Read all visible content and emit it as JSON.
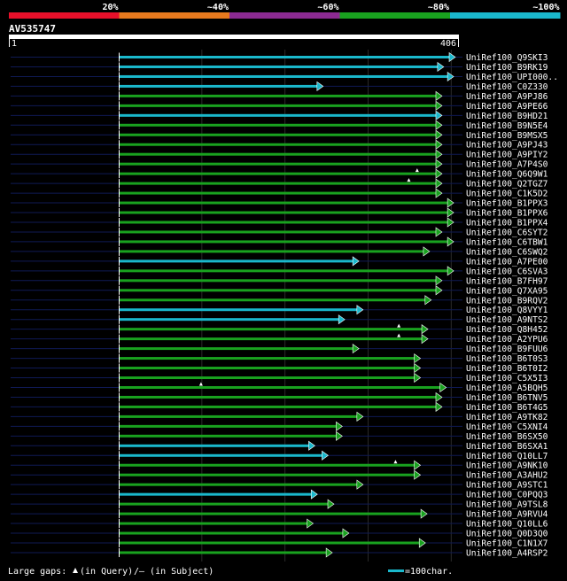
{
  "chart_data": {
    "type": "alignment",
    "query_id": "AV535747",
    "query_length": 406,
    "axis": {
      "start_label": "1",
      "end_label": "406"
    },
    "identity_legend": [
      {
        "label": "20%",
        "color": "#e8102a"
      },
      {
        "label": "~40%",
        "color": "#e87a1e"
      },
      {
        "label": "~60%",
        "color": "#8c2a92"
      },
      {
        "label": "~80%",
        "color": "#19a21f"
      },
      {
        "label": "~100%",
        "color": "#1ab8cc"
      }
    ],
    "footer": {
      "gaps_prefix": "Large gaps: ",
      "gaps_query": "(in Query)",
      "gaps_subject": "/— (in Subject)",
      "scale_label": "=100char."
    },
    "hits": [
      {
        "name": "UniRef100_Q9SKI3",
        "start": 1,
        "end": 406,
        "identity": "100",
        "qmarks": []
      },
      {
        "name": "UniRef100_B9RK19",
        "start": 1,
        "end": 392,
        "identity": "100",
        "qmarks": []
      },
      {
        "name": "UniRef100_UPI000..",
        "start": 1,
        "end": 404,
        "identity": "100",
        "qmarks": []
      },
      {
        "name": "UniRef100_C0Z330",
        "start": 1,
        "end": 247,
        "identity": "100",
        "qmarks": []
      },
      {
        "name": "UniRef100_A9PJ86",
        "start": 1,
        "end": 390,
        "identity": "80",
        "qmarks": []
      },
      {
        "name": "UniRef100_A9PE66",
        "start": 1,
        "end": 390,
        "identity": "80",
        "qmarks": []
      },
      {
        "name": "UniRef100_B9HD21",
        "start": 1,
        "end": 390,
        "identity": "100",
        "qmarks": []
      },
      {
        "name": "UniRef100_B9N5E4",
        "start": 1,
        "end": 390,
        "identity": "80",
        "qmarks": []
      },
      {
        "name": "UniRef100_B9MSX5",
        "start": 1,
        "end": 390,
        "identity": "80",
        "qmarks": []
      },
      {
        "name": "UniRef100_A9PJ43",
        "start": 1,
        "end": 390,
        "identity": "80",
        "qmarks": []
      },
      {
        "name": "UniRef100_A9PIY2",
        "start": 1,
        "end": 390,
        "identity": "80",
        "qmarks": []
      },
      {
        "name": "UniRef100_A7P4S0",
        "start": 1,
        "end": 390,
        "identity": "80",
        "qmarks": []
      },
      {
        "name": "UniRef100_Q6Q9W1",
        "start": 1,
        "end": 390,
        "identity": "80",
        "qmarks": [
          360
        ]
      },
      {
        "name": "UniRef100_Q2TGZ7",
        "start": 1,
        "end": 390,
        "identity": "80",
        "qmarks": [
          350
        ]
      },
      {
        "name": "UniRef100_C1K5D2",
        "start": 1,
        "end": 390,
        "identity": "80",
        "qmarks": []
      },
      {
        "name": "UniRef100_B1PPX3",
        "start": 1,
        "end": 404,
        "identity": "80",
        "qmarks": []
      },
      {
        "name": "UniRef100_B1PPX6",
        "start": 1,
        "end": 404,
        "identity": "80",
        "qmarks": []
      },
      {
        "name": "UniRef100_B1PPX4",
        "start": 1,
        "end": 404,
        "identity": "80",
        "qmarks": []
      },
      {
        "name": "UniRef100_C6SYT2",
        "start": 1,
        "end": 390,
        "identity": "80",
        "qmarks": []
      },
      {
        "name": "UniRef100_C6TBW1",
        "start": 1,
        "end": 404,
        "identity": "80",
        "qmarks": []
      },
      {
        "name": "UniRef100_C6SWQ2",
        "start": 1,
        "end": 375,
        "identity": "80",
        "qmarks": []
      },
      {
        "name": "UniRef100_A7PE00",
        "start": 1,
        "end": 290,
        "identity": "100",
        "qmarks": []
      },
      {
        "name": "UniRef100_C6SVA3",
        "start": 1,
        "end": 404,
        "identity": "80",
        "qmarks": []
      },
      {
        "name": "UniRef100_B7FH97",
        "start": 1,
        "end": 390,
        "identity": "80",
        "qmarks": []
      },
      {
        "name": "UniRef100_Q7XA95",
        "start": 1,
        "end": 390,
        "identity": "80",
        "qmarks": []
      },
      {
        "name": "UniRef100_B9RQV2",
        "start": 1,
        "end": 377,
        "identity": "80",
        "qmarks": []
      },
      {
        "name": "UniRef100_Q8VYY1",
        "start": 1,
        "end": 295,
        "identity": "100",
        "qmarks": []
      },
      {
        "name": "UniRef100_A9NTS2",
        "start": 1,
        "end": 273,
        "identity": "100",
        "qmarks": []
      },
      {
        "name": "UniRef100_Q8H452",
        "start": 1,
        "end": 373,
        "identity": "80",
        "qmarks": [
          338
        ]
      },
      {
        "name": "UniRef100_A2YPU6",
        "start": 1,
        "end": 373,
        "identity": "80",
        "qmarks": [
          338
        ]
      },
      {
        "name": "UniRef100_B9FUU6",
        "start": 1,
        "end": 290,
        "identity": "80",
        "qmarks": []
      },
      {
        "name": "UniRef100_B6T0S3",
        "start": 1,
        "end": 364,
        "identity": "80",
        "qmarks": []
      },
      {
        "name": "UniRef100_B6T0I2",
        "start": 1,
        "end": 364,
        "identity": "80",
        "qmarks": []
      },
      {
        "name": "UniRef100_C5X5I3",
        "start": 1,
        "end": 364,
        "identity": "80",
        "qmarks": []
      },
      {
        "name": "UniRef100_A5BQH5",
        "start": 1,
        "end": 395,
        "identity": "80",
        "qmarks": [
          100
        ]
      },
      {
        "name": "UniRef100_B6TNV5",
        "start": 1,
        "end": 390,
        "identity": "80",
        "qmarks": []
      },
      {
        "name": "UniRef100_B6T4G5",
        "start": 1,
        "end": 390,
        "identity": "80",
        "qmarks": []
      },
      {
        "name": "UniRef100_A9TK82",
        "start": 1,
        "end": 295,
        "identity": "80",
        "qmarks": []
      },
      {
        "name": "UniRef100_C5XNI4",
        "start": 1,
        "end": 270,
        "identity": "80",
        "qmarks": []
      },
      {
        "name": "UniRef100_B6SX50",
        "start": 1,
        "end": 270,
        "identity": "80",
        "qmarks": []
      },
      {
        "name": "UniRef100_B6SXA1",
        "start": 1,
        "end": 237,
        "identity": "100",
        "qmarks": []
      },
      {
        "name": "UniRef100_Q10LL7",
        "start": 1,
        "end": 253,
        "identity": "100",
        "qmarks": []
      },
      {
        "name": "UniRef100_A9NK10",
        "start": 1,
        "end": 364,
        "identity": "80",
        "qmarks": [
          334
        ]
      },
      {
        "name": "UniRef100_A3AHU2",
        "start": 1,
        "end": 364,
        "identity": "80",
        "qmarks": []
      },
      {
        "name": "UniRef100_A9STC1",
        "start": 1,
        "end": 295,
        "identity": "80",
        "qmarks": []
      },
      {
        "name": "UniRef100_C0PQQ3",
        "start": 1,
        "end": 240,
        "identity": "100",
        "qmarks": []
      },
      {
        "name": "UniRef100_A9TSL8",
        "start": 1,
        "end": 260,
        "identity": "80",
        "qmarks": []
      },
      {
        "name": "UniRef100_A9RVU4",
        "start": 1,
        "end": 372,
        "identity": "80",
        "qmarks": []
      },
      {
        "name": "UniRef100_Q10LL6",
        "start": 1,
        "end": 235,
        "identity": "80",
        "qmarks": []
      },
      {
        "name": "UniRef100_Q0D3Q0",
        "start": 1,
        "end": 278,
        "identity": "80",
        "qmarks": []
      },
      {
        "name": "UniRef100_C1N1X7",
        "start": 1,
        "end": 370,
        "identity": "80",
        "qmarks": []
      },
      {
        "name": "UniRef100_A4RSP2",
        "start": 1,
        "end": 258,
        "identity": "80",
        "qmarks": []
      }
    ]
  }
}
